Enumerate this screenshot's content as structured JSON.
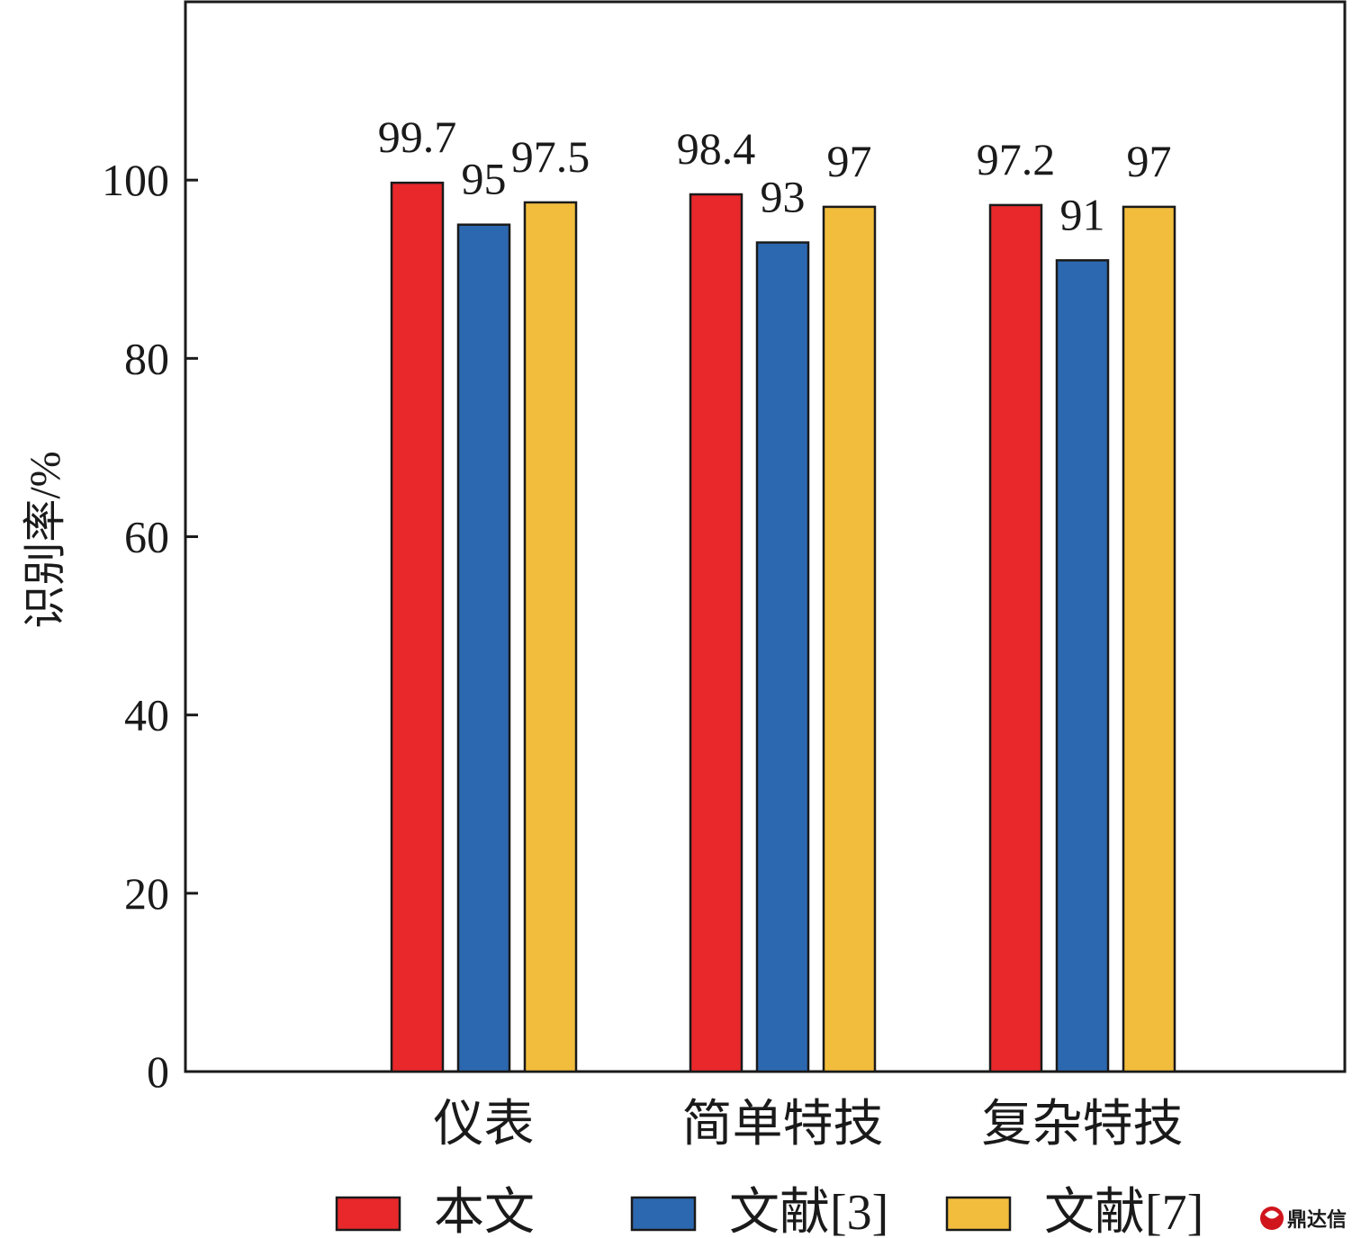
{
  "chart_data": {
    "type": "bar",
    "categories": [
      "仪表",
      "简单特技",
      "复杂特技"
    ],
    "series": [
      {
        "name": "本文",
        "values": [
          99.7,
          98.4,
          97.2
        ],
        "color": "#e8282b"
      },
      {
        "name": "文献[3]",
        "values": [
          95,
          93,
          91
        ],
        "color": "#2c68b0"
      },
      {
        "name": "文献[7]",
        "values": [
          97.5,
          97,
          97
        ],
        "color": "#f2bd3d"
      }
    ],
    "data_labels": [
      [
        "99.7",
        "95",
        "97.5"
      ],
      [
        "98.4",
        "93",
        "97"
      ],
      [
        "97.2",
        "91",
        "97"
      ]
    ],
    "title": "",
    "xlabel": "",
    "ylabel": "识别率/%",
    "ylim": [
      0,
      120
    ],
    "yticks": [
      0,
      20,
      40,
      60,
      80,
      100
    ],
    "grid": false,
    "legend_position": "bottom"
  },
  "watermark": {
    "text": "鼎达信",
    "color": "#d0151d"
  }
}
